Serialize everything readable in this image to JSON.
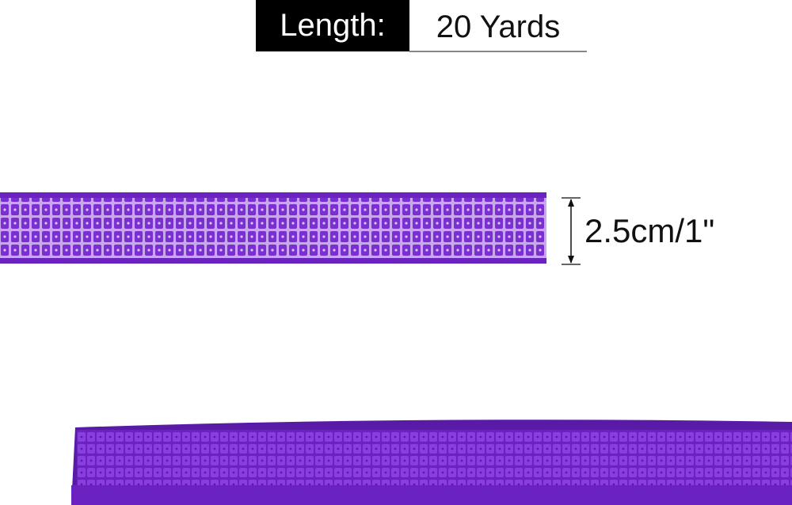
{
  "length": {
    "label": "Length:",
    "value": "20 Yards"
  },
  "width_dimension": {
    "label": "2.5cm/1\""
  },
  "colors": {
    "ribbon": "#7a2fd0",
    "ribbon_light": "#b07fe8",
    "ribbon_dark": "#5a1aa8"
  }
}
